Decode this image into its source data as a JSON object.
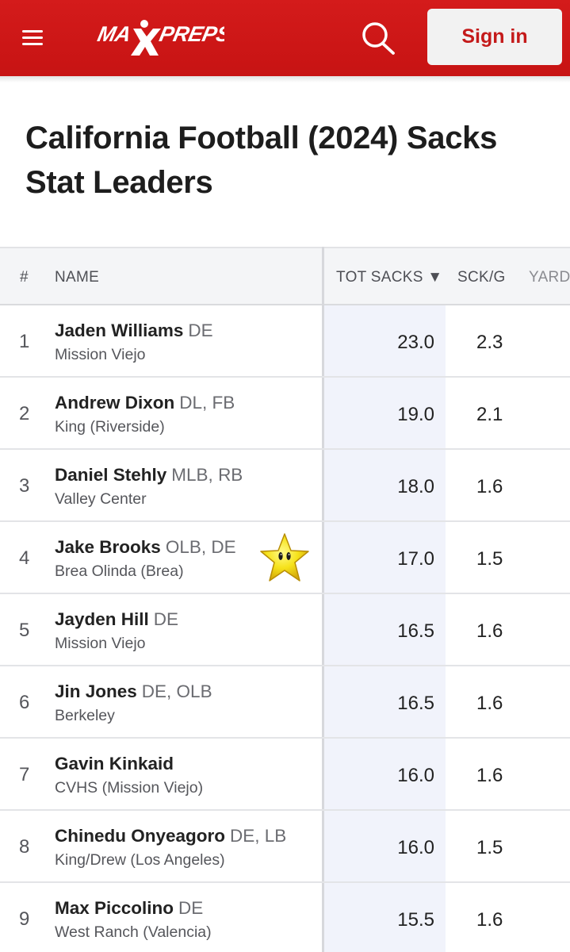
{
  "header": {
    "logo_text": "MAXPREPS",
    "sign_in_label": "Sign in",
    "menu_icon": "hamburger-icon",
    "search_icon": "search-icon"
  },
  "colors": {
    "brand_red": "#d41b1b",
    "sign_in_text": "#c41a1a",
    "sorted_column_bg": "#f1f3fb"
  },
  "page": {
    "title": "California Football (2024) Sacks Stat Leaders"
  },
  "table": {
    "columns": {
      "rank": "#",
      "name": "NAME",
      "tot_sacks": "TOT SACKS ▼",
      "sck_g": "SCK/G",
      "yards": "YARD"
    },
    "rows": [
      {
        "rank": "1",
        "name": "Jaden Williams",
        "pos": "DE",
        "school": "Mission Viejo",
        "tot_sacks": "23.0",
        "sck_g": "2.3"
      },
      {
        "rank": "2",
        "name": "Andrew Dixon",
        "pos": "DL, FB",
        "school": "King (Riverside)",
        "tot_sacks": "19.0",
        "sck_g": "2.1"
      },
      {
        "rank": "3",
        "name": "Daniel Stehly",
        "pos": "MLB, RB",
        "school": "Valley Center",
        "tot_sacks": "18.0",
        "sck_g": "1.6"
      },
      {
        "rank": "4",
        "name": "Jake Brooks",
        "pos": "OLB, DE",
        "school": "Brea Olinda (Brea)",
        "tot_sacks": "17.0",
        "sck_g": "1.5",
        "sticker": "star-icon"
      },
      {
        "rank": "5",
        "name": "Jayden Hill",
        "pos": "DE",
        "school": "Mission Viejo",
        "tot_sacks": "16.5",
        "sck_g": "1.6"
      },
      {
        "rank": "6",
        "name": "Jin Jones",
        "pos": "DE, OLB",
        "school": "Berkeley",
        "tot_sacks": "16.5",
        "sck_g": "1.6"
      },
      {
        "rank": "7",
        "name": "Gavin Kinkaid",
        "pos": "",
        "school": "CVHS (Mission Viejo)",
        "tot_sacks": "16.0",
        "sck_g": "1.6"
      },
      {
        "rank": "8",
        "name": "Chinedu Onyeagoro",
        "pos": "DE, LB",
        "school": "King/Drew (Los Angeles)",
        "tot_sacks": "16.0",
        "sck_g": "1.5"
      },
      {
        "rank": "9",
        "name": "Max Piccolino",
        "pos": "DE",
        "school": "West Ranch (Valencia)",
        "tot_sacks": "15.5",
        "sck_g": "1.6"
      }
    ]
  }
}
